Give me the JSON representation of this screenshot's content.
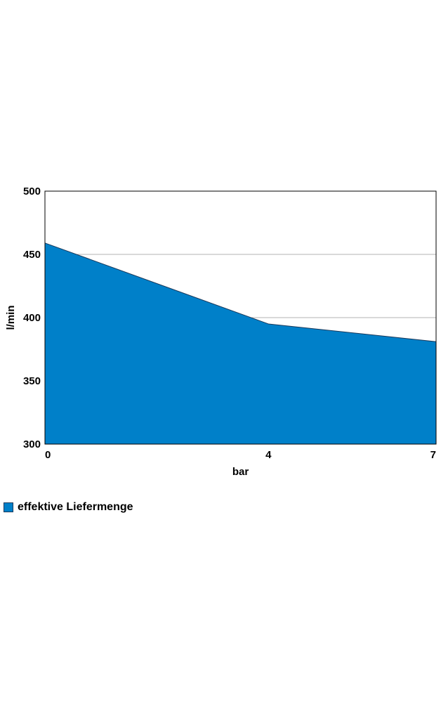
{
  "chart_data": {
    "type": "area",
    "x": [
      0,
      4,
      7
    ],
    "series": [
      {
        "name": "effektive Liefermenge",
        "values": [
          459,
          395,
          381
        ],
        "color": "#0080c9"
      }
    ],
    "xlabel": "bar",
    "ylabel": "l/min",
    "xlim": [
      0,
      7
    ],
    "ylim": [
      300,
      500
    ],
    "xticks": [
      "0",
      "4",
      "7"
    ],
    "yticks": [
      "500",
      "450",
      "400",
      "350",
      "300"
    ],
    "grid": true,
    "legend_position": "bottom-left"
  }
}
